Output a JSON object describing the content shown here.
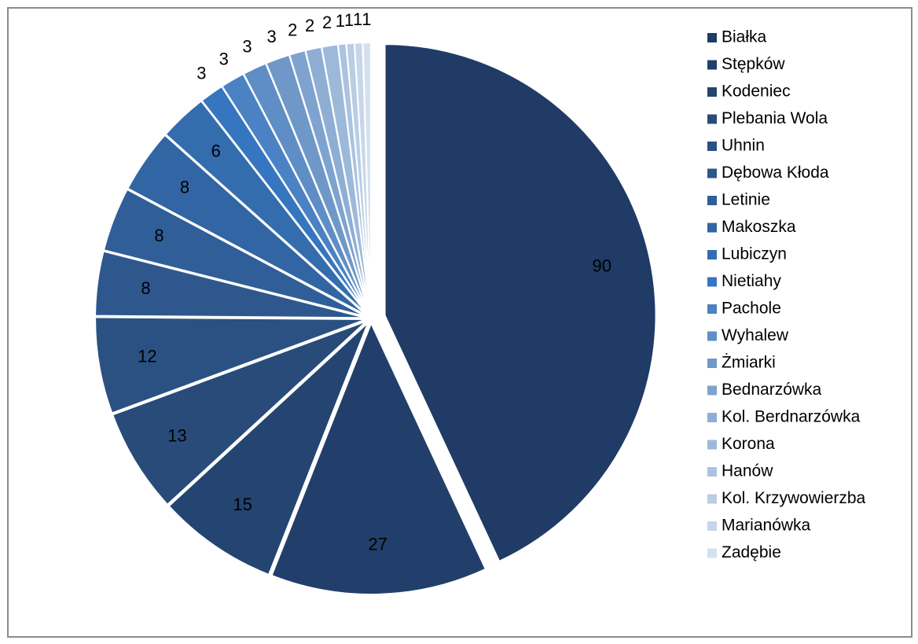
{
  "chart_data": {
    "type": "pie",
    "categories": [
      "Białka",
      "Stępków",
      "Kodeniec",
      "Plebania Wola",
      "Uhnin",
      "Dębowa Kłoda",
      "Letinie",
      "Makoszka",
      "Lubiczyn",
      "Nietiahy",
      "Pachole",
      "Wyhalew",
      "Żmiarki",
      "Bednarzówka",
      "Kol. Berdnarzówka",
      "Korona",
      "Hanów",
      "Kol. Krzywowierzba",
      "Marianówka",
      "Zadębie"
    ],
    "values": [
      90,
      27,
      15,
      13,
      12,
      8,
      8,
      8,
      6,
      3,
      3,
      3,
      3,
      2,
      2,
      2,
      1,
      1,
      1,
      1
    ],
    "colors": [
      "#1f3b66",
      "#223f6b",
      "#244572",
      "#284b7a",
      "#2b5183",
      "#2e578d",
      "#305e98",
      "#3265a3",
      "#346dae",
      "#3676c0",
      "#4a82c4",
      "#5f8ec6",
      "#6f98c9",
      "#7fa3cf",
      "#8eaed4",
      "#9db9da",
      "#abc3df",
      "#b9cde5",
      "#c7d6ea",
      "#d5e0ef"
    ],
    "legend": "right"
  }
}
